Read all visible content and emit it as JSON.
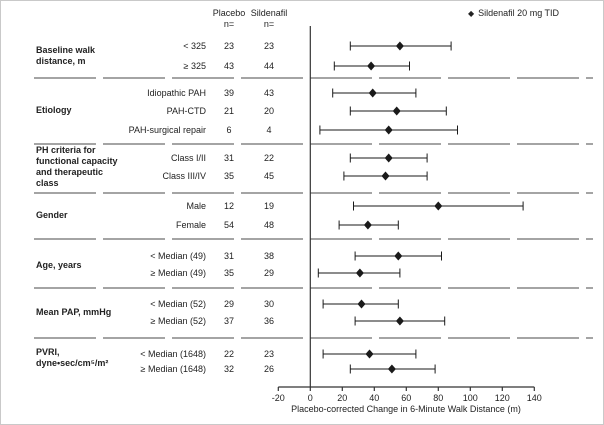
{
  "columns": {
    "placebo_header": "Placebo\nn=",
    "sildenafil_header": "Sildenafil\nn="
  },
  "legend": {
    "marker": "◆",
    "label": "Sildenafil 20 mg TID"
  },
  "chart_data": {
    "type": "scatter",
    "variant": "forest-plot",
    "xlabel": "Placebo-corrected Change in 6-Minute Walk Distance (m)",
    "xlim": [
      -20,
      140
    ],
    "xticks": [
      -20,
      0,
      20,
      40,
      60,
      80,
      100,
      120,
      140
    ],
    "reference_line_x": 0,
    "marker": {
      "shape": "diamond",
      "color": "#1a1a1a"
    },
    "grid": false,
    "legend_position": "top-right",
    "groups": [
      {
        "label": "Baseline walk\ndistance, m",
        "rows": [
          {
            "label": "< 325",
            "placebo_n": 23,
            "sildenafil_n": 23,
            "estimate": 56,
            "ci_low": 25,
            "ci_high": 88
          },
          {
            "label": "≥ 325",
            "placebo_n": 43,
            "sildenafil_n": 44,
            "estimate": 38,
            "ci_low": 15,
            "ci_high": 62
          }
        ]
      },
      {
        "label": "Etiology",
        "rows": [
          {
            "label": "Idiopathic PAH",
            "placebo_n": 39,
            "sildenafil_n": 43,
            "estimate": 39,
            "ci_low": 14,
            "ci_high": 66
          },
          {
            "label": "PAH-CTD",
            "placebo_n": 21,
            "sildenafil_n": 20,
            "estimate": 54,
            "ci_low": 25,
            "ci_high": 85
          },
          {
            "label": "PAH-surgical repair",
            "placebo_n": 6,
            "sildenafil_n": 4,
            "estimate": 49,
            "ci_low": 6,
            "ci_high": 92
          }
        ]
      },
      {
        "label": "PH criteria for\nfunctional capacity\nand therapeutic\nclass",
        "rows": [
          {
            "label": "Class I/II",
            "placebo_n": 31,
            "sildenafil_n": 22,
            "estimate": 49,
            "ci_low": 25,
            "ci_high": 73
          },
          {
            "label": "Class III/IV",
            "placebo_n": 35,
            "sildenafil_n": 45,
            "estimate": 47,
            "ci_low": 21,
            "ci_high": 73
          }
        ]
      },
      {
        "label": "Gender",
        "rows": [
          {
            "label": "Male",
            "placebo_n": 12,
            "sildenafil_n": 19,
            "estimate": 80,
            "ci_low": 27,
            "ci_high": 133
          },
          {
            "label": "Female",
            "placebo_n": 54,
            "sildenafil_n": 48,
            "estimate": 36,
            "ci_low": 18,
            "ci_high": 55
          }
        ]
      },
      {
        "label": "Age, years",
        "rows": [
          {
            "label": "< Median (49)",
            "placebo_n": 31,
            "sildenafil_n": 38,
            "estimate": 55,
            "ci_low": 28,
            "ci_high": 82
          },
          {
            "label": "≥ Median (49)",
            "placebo_n": 35,
            "sildenafil_n": 29,
            "estimate": 31,
            "ci_low": 5,
            "ci_high": 56
          }
        ]
      },
      {
        "label": "Mean PAP, mmHg",
        "rows": [
          {
            "label": "< Median (52)",
            "placebo_n": 29,
            "sildenafil_n": 30,
            "estimate": 32,
            "ci_low": 8,
            "ci_high": 55
          },
          {
            "label": "≥ Median (52)",
            "placebo_n": 37,
            "sildenafil_n": 36,
            "estimate": 56,
            "ci_low": 28,
            "ci_high": 84
          }
        ]
      },
      {
        "label": "PVRI,\ndyne•sec/cm⁵/m²",
        "rows": [
          {
            "label": "< Median (1648)",
            "placebo_n": 22,
            "sildenafil_n": 23,
            "estimate": 37,
            "ci_low": 8,
            "ci_high": 66
          },
          {
            "label": "≥ Median (1648)",
            "placebo_n": 32,
            "sildenafil_n": 26,
            "estimate": 51,
            "ci_low": 25,
            "ci_high": 78
          }
        ]
      }
    ]
  }
}
